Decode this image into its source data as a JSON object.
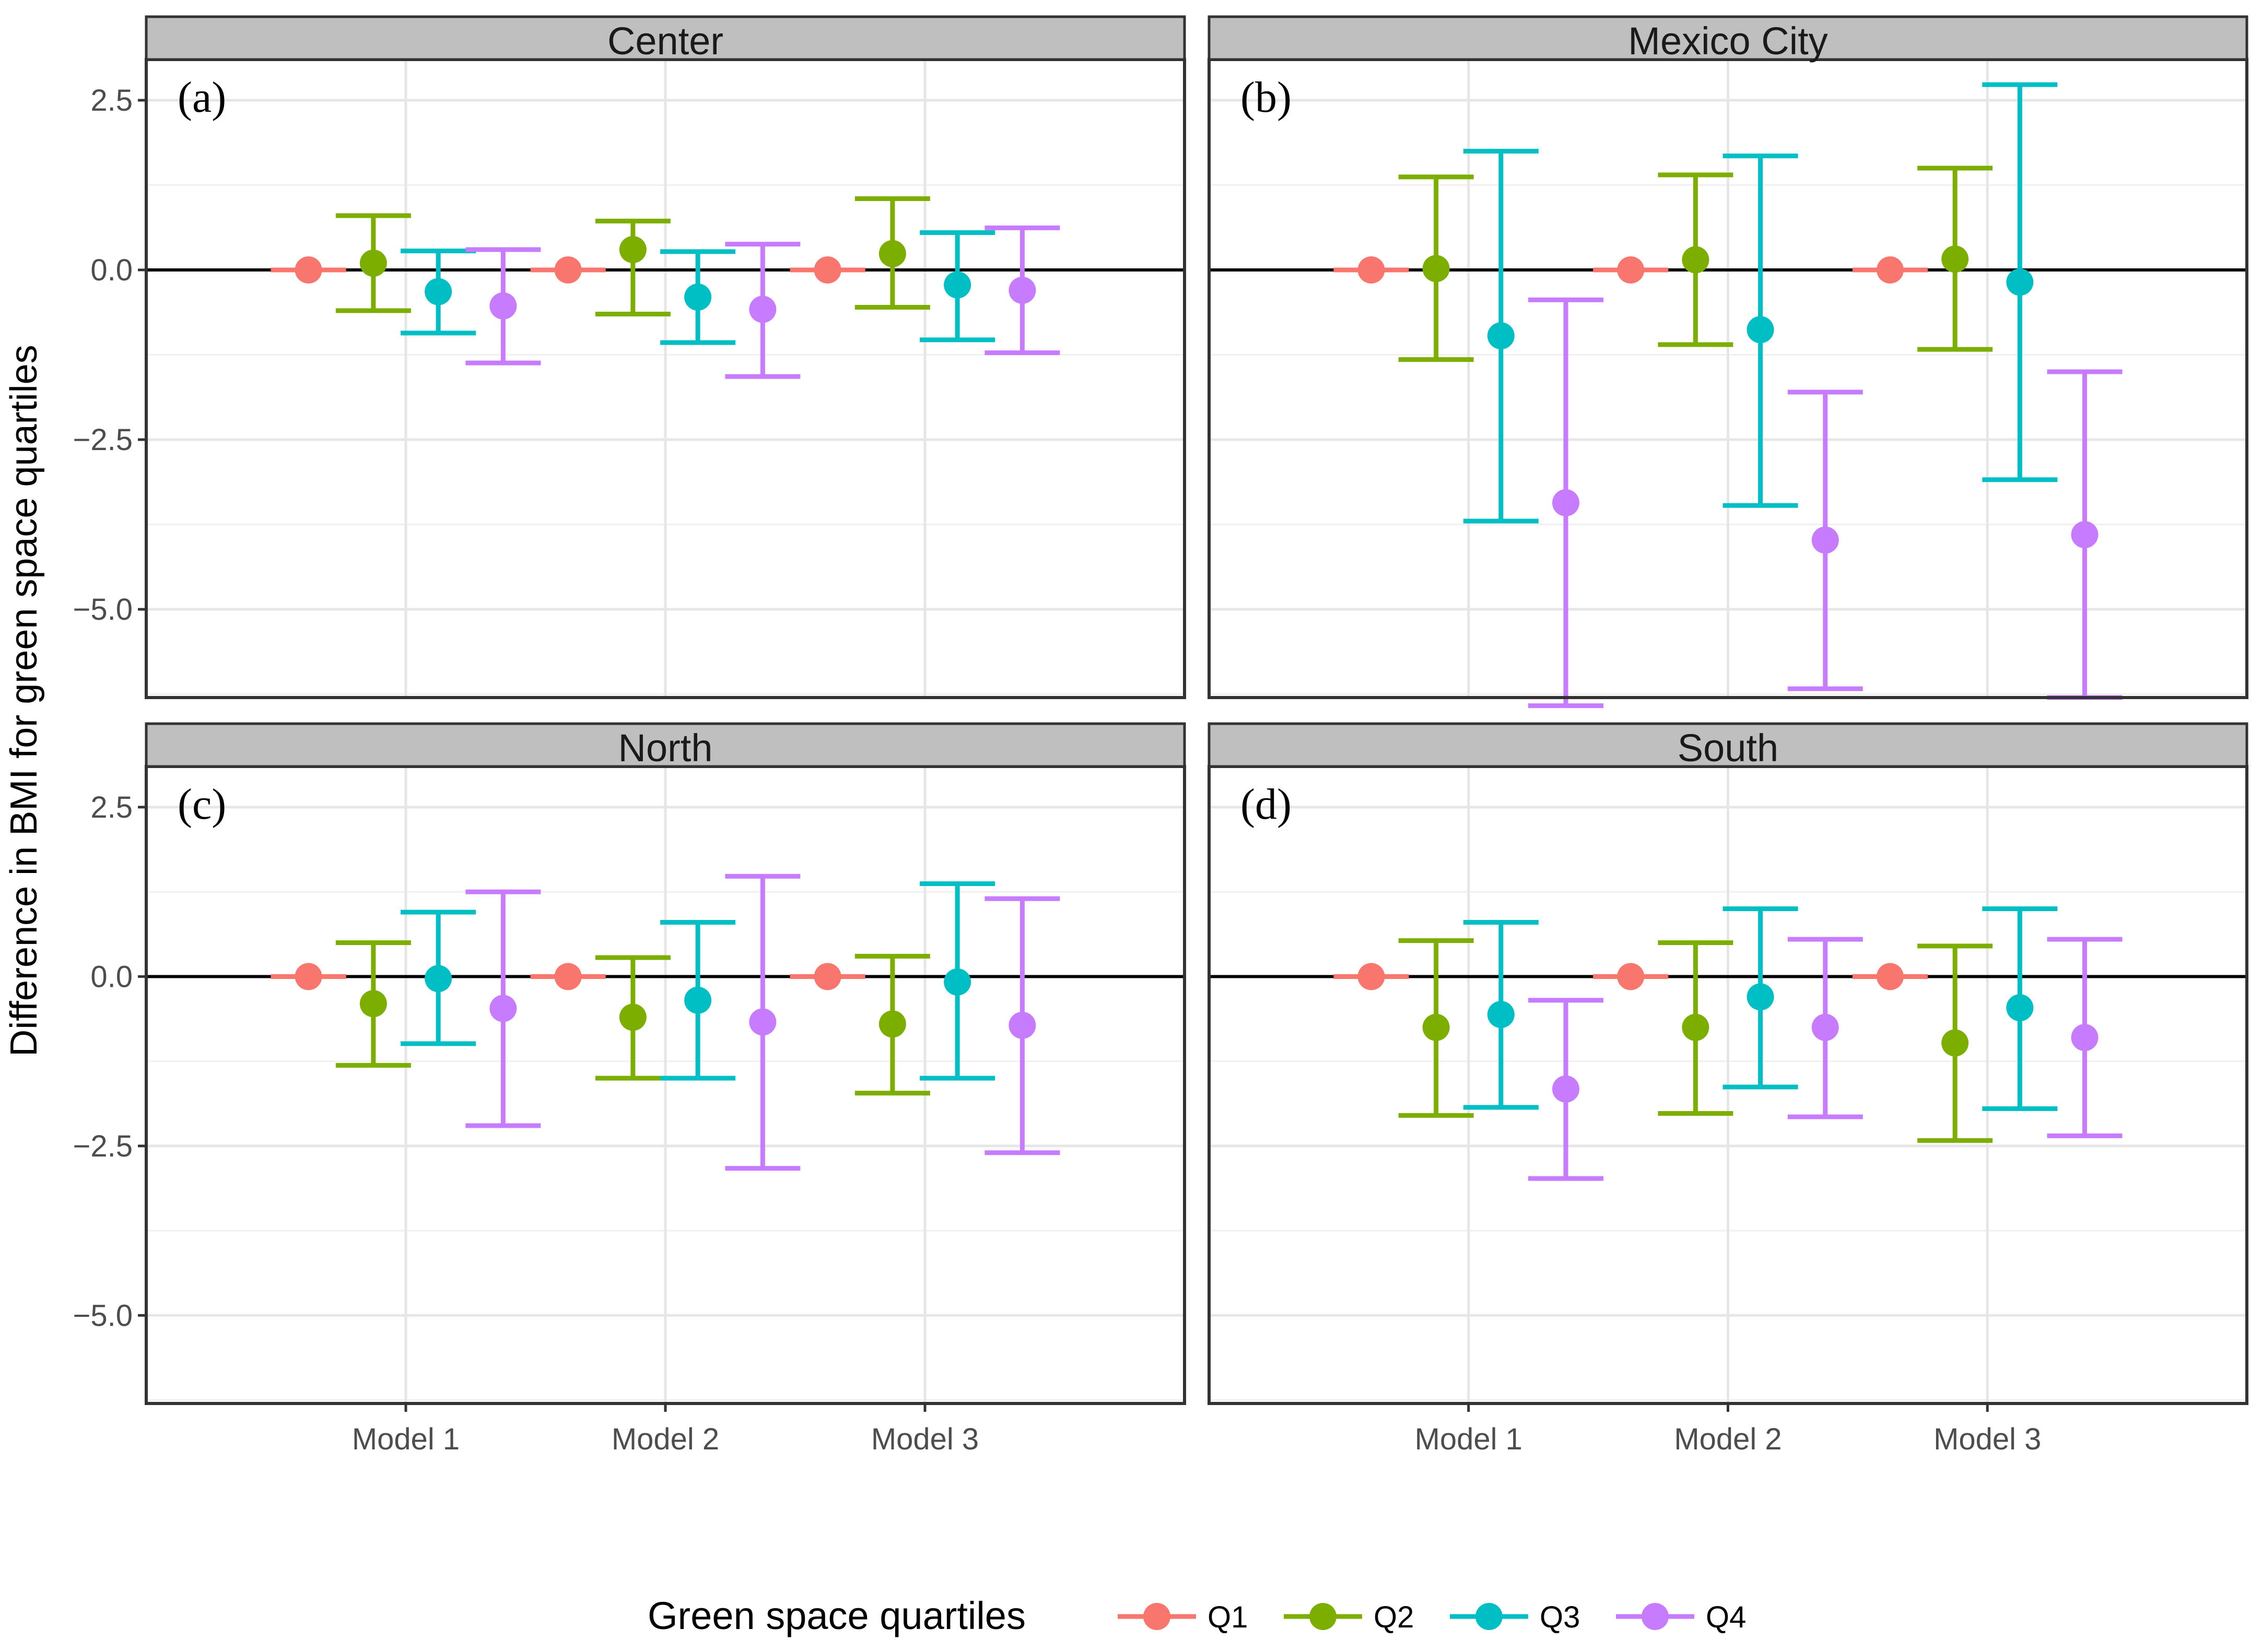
{
  "chart_data": {
    "type": "errorbar",
    "ylabel": "Difference in BMI for green space quartiles",
    "xlabel": "",
    "ylim": [
      -6.3,
      3.1
    ],
    "yticks": [
      2.5,
      0.0,
      -2.5,
      -5.0
    ],
    "ytick_labels": [
      "2.5",
      "0.0",
      "−2.5",
      "−5.0"
    ],
    "categories": [
      "Model 1",
      "Model 2",
      "Model 3"
    ],
    "reference_line": 0,
    "grid": true,
    "legend": {
      "title": "Green space quartiles",
      "placement": "bottom",
      "entries": [
        "Q1",
        "Q2",
        "Q3",
        "Q4"
      ]
    },
    "colors": {
      "Q1": "#F8766D",
      "Q2": "#7CAE00",
      "Q3": "#00BFC4",
      "Q4": "#C77CFF"
    },
    "panels": [
      {
        "strip": "Center",
        "tag": "(a)",
        "series": [
          {
            "name": "Q1",
            "points": [
              {
                "est": 0,
                "lo": 0,
                "hi": 0
              },
              {
                "est": 0,
                "lo": 0,
                "hi": 0
              },
              {
                "est": 0,
                "lo": 0,
                "hi": 0
              }
            ]
          },
          {
            "name": "Q2",
            "points": [
              {
                "est": 0.1,
                "lo": -0.6,
                "hi": 0.8
              },
              {
                "est": 0.3,
                "lo": -0.65,
                "hi": 0.72
              },
              {
                "est": 0.24,
                "lo": -0.55,
                "hi": 1.05
              }
            ]
          },
          {
            "name": "Q3",
            "points": [
              {
                "est": -0.32,
                "lo": -0.93,
                "hi": 0.28
              },
              {
                "est": -0.4,
                "lo": -1.07,
                "hi": 0.27
              },
              {
                "est": -0.22,
                "lo": -1.03,
                "hi": 0.55
              }
            ]
          },
          {
            "name": "Q4",
            "points": [
              {
                "est": -0.53,
                "lo": -1.37,
                "hi": 0.3
              },
              {
                "est": -0.58,
                "lo": -1.57,
                "hi": 0.38
              },
              {
                "est": -0.3,
                "lo": -1.22,
                "hi": 0.62
              }
            ]
          }
        ]
      },
      {
        "strip": "Mexico City",
        "tag": "(b)",
        "series": [
          {
            "name": "Q1",
            "points": [
              {
                "est": 0,
                "lo": 0,
                "hi": 0
              },
              {
                "est": 0,
                "lo": 0,
                "hi": 0
              },
              {
                "est": 0,
                "lo": 0,
                "hi": 0
              }
            ]
          },
          {
            "name": "Q2",
            "points": [
              {
                "est": 0.02,
                "lo": -1.32,
                "hi": 1.37
              },
              {
                "est": 0.15,
                "lo": -1.1,
                "hi": 1.4
              },
              {
                "est": 0.16,
                "lo": -1.17,
                "hi": 1.5
              }
            ]
          },
          {
            "name": "Q3",
            "points": [
              {
                "est": -0.97,
                "lo": -3.7,
                "hi": 1.75
              },
              {
                "est": -0.88,
                "lo": -3.47,
                "hi": 1.68
              },
              {
                "est": -0.18,
                "lo": -3.09,
                "hi": 2.73
              }
            ]
          },
          {
            "name": "Q4",
            "points": [
              {
                "est": -3.43,
                "lo": -6.42,
                "hi": -0.44
              },
              {
                "est": -3.98,
                "lo": -6.17,
                "hi": -1.8
              },
              {
                "est": -3.9,
                "lo": -6.3,
                "hi": -1.5
              }
            ]
          }
        ]
      },
      {
        "strip": "North",
        "tag": "(c)",
        "series": [
          {
            "name": "Q1",
            "points": [
              {
                "est": 0,
                "lo": 0,
                "hi": 0
              },
              {
                "est": 0,
                "lo": 0,
                "hi": 0
              },
              {
                "est": 0,
                "lo": 0,
                "hi": 0
              }
            ]
          },
          {
            "name": "Q2",
            "points": [
              {
                "est": -0.4,
                "lo": -1.31,
                "hi": 0.5
              },
              {
                "est": -0.6,
                "lo": -1.5,
                "hi": 0.28
              },
              {
                "est": -0.7,
                "lo": -1.72,
                "hi": 0.3
              }
            ]
          },
          {
            "name": "Q3",
            "points": [
              {
                "est": -0.03,
                "lo": -0.99,
                "hi": 0.95
              },
              {
                "est": -0.35,
                "lo": -1.5,
                "hi": 0.8
              },
              {
                "est": -0.08,
                "lo": -1.5,
                "hi": 1.37
              }
            ]
          },
          {
            "name": "Q4",
            "points": [
              {
                "est": -0.47,
                "lo": -2.2,
                "hi": 1.25
              },
              {
                "est": -0.67,
                "lo": -2.83,
                "hi": 1.48
              },
              {
                "est": -0.72,
                "lo": -2.6,
                "hi": 1.15
              }
            ]
          }
        ]
      },
      {
        "strip": "South",
        "tag": "(d)",
        "series": [
          {
            "name": "Q1",
            "points": [
              {
                "est": 0,
                "lo": 0,
                "hi": 0
              },
              {
                "est": 0,
                "lo": 0,
                "hi": 0
              },
              {
                "est": 0,
                "lo": 0,
                "hi": 0
              }
            ]
          },
          {
            "name": "Q2",
            "points": [
              {
                "est": -0.75,
                "lo": -2.05,
                "hi": 0.53
              },
              {
                "est": -0.75,
                "lo": -2.02,
                "hi": 0.5
              },
              {
                "est": -0.98,
                "lo": -2.42,
                "hi": 0.45
              }
            ]
          },
          {
            "name": "Q3",
            "points": [
              {
                "est": -0.56,
                "lo": -1.93,
                "hi": 0.8
              },
              {
                "est": -0.3,
                "lo": -1.63,
                "hi": 1.0
              },
              {
                "est": -0.46,
                "lo": -1.95,
                "hi": 1.0
              }
            ]
          },
          {
            "name": "Q4",
            "points": [
              {
                "est": -1.66,
                "lo": -2.98,
                "hi": -0.35
              },
              {
                "est": -0.75,
                "lo": -2.07,
                "hi": 0.55
              },
              {
                "est": -0.9,
                "lo": -2.35,
                "hi": 0.55
              }
            ]
          }
        ]
      }
    ]
  }
}
